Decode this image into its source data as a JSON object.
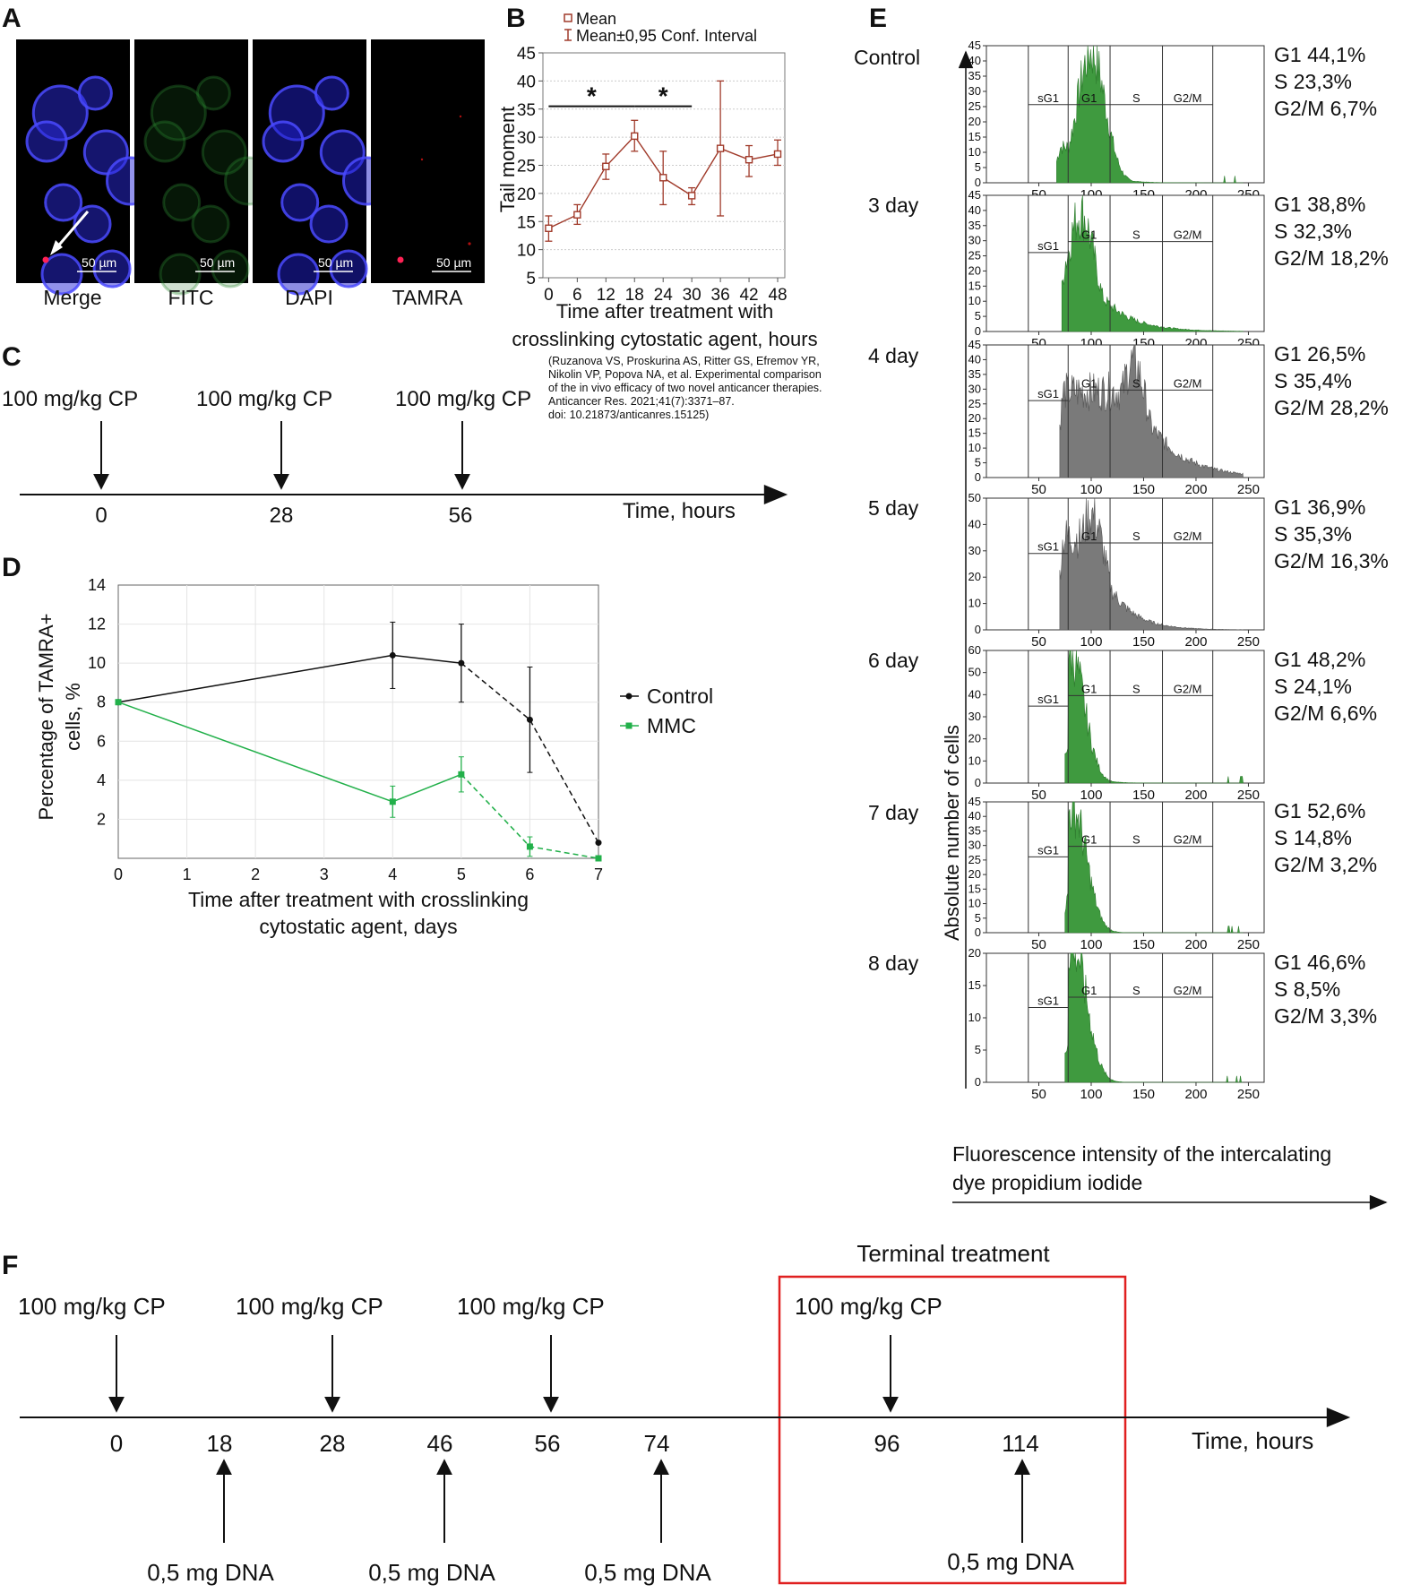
{
  "panelA": {
    "label": "A",
    "scale_bar": "50 µm",
    "channels": [
      "Merge",
      "FITC",
      "DAPI",
      "TAMRA"
    ],
    "channel_colors": [
      "#2a2ad8",
      "#1e6b22",
      "#2020c8",
      "#8a0a0a"
    ]
  },
  "chart_data": [
    {
      "panel": "B",
      "type": "line",
      "legend": [
        "Mean",
        "Mean±0,95 Conf. Interval"
      ],
      "xlabel": "Time after treatment with crosslinking cytostatic agent, hours",
      "ylabel": "Tail moment",
      "x": [
        0,
        6,
        12,
        18,
        24,
        30,
        36,
        42,
        48
      ],
      "series": [
        {
          "values": [
            13.8,
            16.2,
            24.8,
            30.2,
            22.8,
            19.6,
            28.0,
            26.0,
            27.0
          ],
          "ci_low": [
            11.5,
            14.5,
            22.5,
            27.5,
            18.0,
            18.0,
            16.0,
            23.0,
            25.0
          ],
          "ci_high": [
            16.0,
            18.0,
            27.0,
            33.0,
            27.5,
            21.0,
            40.0,
            28.5,
            29.5
          ],
          "color": "#a03a2a"
        }
      ],
      "xlim": [
        -1.2,
        49.5
      ],
      "ylim": [
        5,
        45
      ],
      "ticks_y": [
        5,
        10,
        15,
        20,
        25,
        30,
        35,
        40,
        45
      ],
      "significance": [
        {
          "x1": 0,
          "x2": 18,
          "y": 35.5,
          "mark": "*"
        },
        {
          "x1": 18,
          "x2": 30,
          "y": 35.5,
          "mark": "*"
        }
      ],
      "citation": [
        "(Ruzanova VS, Proskurina AS, Ritter GS, Efremov YR,",
        "Nikolin VP, Popova NA, et al. Experimental comparison",
        "of the in vivo efficacy of two novel anticancer therapies.",
        "Anticancer Res. 2021;41(7):3371–87.",
        "doi: 10.21873/anticanres.15125)"
      ]
    },
    {
      "panel": "D",
      "type": "line",
      "xlabel": "Time after treatment with crosslinking cytostatic agent, days",
      "ylabel": "Percentage of TAMRA+ cells, %",
      "x_ticks": [
        0,
        1,
        2,
        3,
        4,
        5,
        6,
        7
      ],
      "y_ticks": [
        2,
        4,
        6,
        8,
        10,
        12,
        14
      ],
      "xlim": [
        0,
        7
      ],
      "ylim": [
        0,
        14
      ],
      "grid": true,
      "series": [
        {
          "name": "Control",
          "color": "#111111",
          "x": [
            0,
            4,
            5,
            6,
            7
          ],
          "values": [
            8.0,
            10.4,
            10.0,
            7.1,
            0.8
          ],
          "err": [
            0,
            1.7,
            2.0,
            2.7,
            0
          ],
          "dashed_from_index": 2
        },
        {
          "name": "MMC",
          "color": "#22b04a",
          "x": [
            0,
            4,
            5,
            6,
            7
          ],
          "values": [
            8.0,
            2.9,
            4.3,
            0.6,
            0.0
          ],
          "err": [
            0,
            0.8,
            0.9,
            0.5,
            0
          ],
          "dashed_from_index": 2
        }
      ]
    }
  ],
  "panelC": {
    "label": "C",
    "doses": [
      "100 mg/kg CP",
      "100 mg/kg CP",
      "100 mg/kg CP"
    ],
    "times": [
      "0",
      "28",
      "56"
    ],
    "axis_label": "Time, hours"
  },
  "panelE": {
    "label": "E",
    "ylabel": "Absolute number of cells",
    "xlabel_line1": "Fluorescence intensity of the intercalating",
    "xlabel_line2": "dye propidium iodide",
    "x_ticks": [
      "50",
      "100",
      "150",
      "200",
      "250"
    ],
    "gate_labels": [
      "sG1",
      "G1",
      "S",
      "G2/M"
    ],
    "green": "#3f9a3f",
    "gray": "#7a7a7a",
    "histograms": [
      {
        "name": "Control",
        "color": "green",
        "ymax": 45,
        "yticks": [
          0,
          5,
          10,
          15,
          20,
          25,
          30,
          35,
          40,
          45
        ],
        "stats": [
          "G1 44,1%",
          "S 23,3%",
          "G2/M 6,7%"
        ],
        "start": 67,
        "peak": 100,
        "pkval": 44,
        "base": 12,
        "tail": 0.4
      },
      {
        "name": "3 day",
        "color": "green",
        "ymax": 45,
        "yticks": [
          0,
          5,
          10,
          15,
          20,
          25,
          30,
          35,
          40,
          45
        ],
        "stats": [
          "G1 38,8%",
          "S 32,3%",
          "G2/M 18,2%"
        ],
        "start": 72,
        "peak": 90,
        "pkval": 40,
        "base": 24,
        "tail": 0.85
      },
      {
        "name": "4 day",
        "color": "gray",
        "ymax": 45,
        "yticks": [
          0,
          5,
          10,
          15,
          20,
          25,
          30,
          35,
          40,
          45
        ],
        "stats": [
          "G1 26,5%",
          "S 35,4%",
          "G2/M 28,2%"
        ],
        "start": 70,
        "peak": 140,
        "pkval": 40,
        "base": 30,
        "tail": 1.0
      },
      {
        "name": "5 day",
        "color": "gray",
        "ymax": 50,
        "yticks": [
          0,
          10,
          20,
          30,
          40,
          50
        ],
        "stats": [
          "G1 36,9%",
          "S 35,3%",
          "G2/M 16,3%"
        ],
        "start": 70,
        "peak": 100,
        "pkval": 45,
        "base": 36,
        "tail": 0.7
      },
      {
        "name": "6 day",
        "color": "green",
        "ymax": 60,
        "yticks": [
          0,
          10,
          20,
          30,
          40,
          50,
          60
        ],
        "stats": [
          "G1 48,2%",
          "S 24,1%",
          "G2/M 6,6%"
        ],
        "start": 75,
        "peak": 80,
        "pkval": 60,
        "base": 20,
        "tail": 0.35
      },
      {
        "name": "7 day",
        "color": "green",
        "ymax": 45,
        "yticks": [
          0,
          5,
          10,
          15,
          20,
          25,
          30,
          35,
          40,
          45
        ],
        "stats": [
          "G1 52,6%",
          "S 14,8%",
          "G2/M 3,2%"
        ],
        "start": 75,
        "peak": 82,
        "pkval": 44,
        "base": 14,
        "tail": 0.25
      },
      {
        "name": "8 day",
        "color": "green",
        "ymax": 20,
        "yticks": [
          0,
          5,
          10,
          15,
          20
        ],
        "stats": [
          "G1 46,6%",
          "S 8,5%",
          "G2/M 3,3%"
        ],
        "start": 75,
        "peak": 82,
        "pkval": 22,
        "base": 7,
        "tail": 0.25
      }
    ]
  },
  "panelF": {
    "label": "F",
    "title": "Terminal treatment",
    "doses": [
      "100 mg/kg CP",
      "100 mg/kg CP",
      "100 mg/kg CP",
      "100 mg/kg CP"
    ],
    "dose_times": [
      "0",
      "28",
      "56",
      "96"
    ],
    "dna_times": [
      "18",
      "46",
      "74",
      "114"
    ],
    "dna_labels": [
      "0,5 mg DNA",
      "0,5 mg DNA",
      "0,5 mg DNA",
      "0,5 mg DNA"
    ],
    "axis_label": "Time, hours",
    "box_color": "#e02020"
  }
}
